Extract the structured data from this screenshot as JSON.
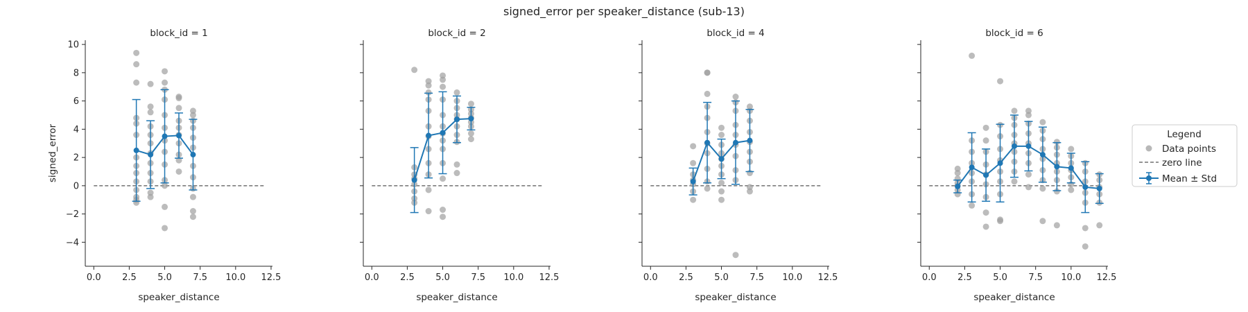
{
  "figure": {
    "title": "signed_error per speaker_distance (sub-13)"
  },
  "colors": {
    "points": "#a0a0a0",
    "mean": "#1f77b4",
    "zero_line": "#707070",
    "axis": "#262626"
  },
  "legend": {
    "title": "Legend",
    "placement": "right",
    "entries": [
      {
        "key": "points",
        "label": "Data points"
      },
      {
        "key": "zero",
        "label": "zero line"
      },
      {
        "key": "mean",
        "label": "Mean ± Std"
      }
    ]
  },
  "chart_data": [
    {
      "type": "scatter",
      "title": "block_id = 1",
      "xlabel": "speaker_distance",
      "ylabel": "signed_error",
      "xlim": [
        -0.6,
        12.6
      ],
      "ylim": [
        -5.7,
        10.3
      ],
      "xticks": [
        0.0,
        2.5,
        5.0,
        7.5,
        10.0,
        12.5
      ],
      "xtick_labels": [
        "0.0",
        "2.5",
        "5.0",
        "7.5",
        "10.0",
        "12.5"
      ],
      "yticks": [
        -4,
        -2,
        0,
        2,
        4,
        6,
        8,
        10
      ],
      "ytick_labels": [
        "−4",
        "−2",
        "0",
        "2",
        "4",
        "6",
        "8",
        "10"
      ],
      "zero_line": {
        "y": 0,
        "x_range": [
          0,
          12
        ]
      },
      "mean_std": [
        {
          "x": 3,
          "mean": 2.5,
          "std": 3.6
        },
        {
          "x": 4,
          "mean": 2.2,
          "std": 2.4
        },
        {
          "x": 5,
          "mean": 3.5,
          "std": 3.3
        },
        {
          "x": 6,
          "mean": 3.55,
          "std": 1.6
        },
        {
          "x": 7,
          "mean": 2.2,
          "std": 2.5
        }
      ],
      "points": [
        [
          3,
          9.4
        ],
        [
          3,
          8.6
        ],
        [
          3,
          7.3
        ],
        [
          3,
          4.8
        ],
        [
          3,
          4.4
        ],
        [
          3,
          3.6
        ],
        [
          3,
          2.0
        ],
        [
          3,
          1.4
        ],
        [
          3,
          0.9
        ],
        [
          3,
          0.3
        ],
        [
          3,
          -0.3
        ],
        [
          3,
          -0.8
        ],
        [
          3,
          -1.0
        ],
        [
          3,
          -1.2
        ],
        [
          4,
          7.2
        ],
        [
          4,
          5.6
        ],
        [
          4,
          5.2
        ],
        [
          4,
          4.2
        ],
        [
          4,
          3.6
        ],
        [
          4,
          3.0
        ],
        [
          4,
          2.3
        ],
        [
          4,
          1.6
        ],
        [
          4,
          0.9
        ],
        [
          4,
          0.3
        ],
        [
          4,
          -0.5
        ],
        [
          4,
          -0.8
        ],
        [
          5,
          8.1
        ],
        [
          5,
          7.3
        ],
        [
          5,
          6.8
        ],
        [
          5,
          6.1
        ],
        [
          5,
          5.0
        ],
        [
          5,
          4.1
        ],
        [
          5,
          3.2
        ],
        [
          5,
          2.4
        ],
        [
          5,
          1.5
        ],
        [
          5,
          0.4
        ],
        [
          5,
          0.0
        ],
        [
          5,
          -1.5
        ],
        [
          5,
          -3.0
        ],
        [
          6,
          6.3
        ],
        [
          6,
          6.2
        ],
        [
          6,
          5.5
        ],
        [
          6,
          4.6
        ],
        [
          6,
          4.1
        ],
        [
          6,
          3.6
        ],
        [
          6,
          3.0
        ],
        [
          6,
          2.2
        ],
        [
          6,
          1.8
        ],
        [
          6,
          1.0
        ],
        [
          7,
          5.3
        ],
        [
          7,
          5.0
        ],
        [
          7,
          4.6
        ],
        [
          7,
          4.1
        ],
        [
          7,
          3.4
        ],
        [
          7,
          2.7
        ],
        [
          7,
          1.4
        ],
        [
          7,
          0.6
        ],
        [
          7,
          -0.2
        ],
        [
          7,
          -0.8
        ],
        [
          7,
          -1.8
        ],
        [
          7,
          -2.2
        ]
      ]
    },
    {
      "type": "scatter",
      "title": "block_id = 2",
      "xlabel": "speaker_distance",
      "ylabel": "",
      "xlim": [
        -0.6,
        12.6
      ],
      "ylim": [
        -5.7,
        10.3
      ],
      "xticks": [
        0.0,
        2.5,
        5.0,
        7.5,
        10.0,
        12.5
      ],
      "xtick_labels": [
        "0.0",
        "2.5",
        "5.0",
        "7.5",
        "10.0",
        "12.5"
      ],
      "yticks": [
        -4,
        -2,
        0,
        2,
        4,
        6,
        8,
        10
      ],
      "ytick_labels": [
        "",
        "",
        "",
        "",
        "",
        "",
        "",
        ""
      ],
      "zero_line": {
        "y": 0,
        "x_range": [
          0,
          12
        ]
      },
      "mean_std": [
        {
          "x": 3,
          "mean": 0.4,
          "std": 2.3
        },
        {
          "x": 4,
          "mean": 3.55,
          "std": 3.0
        },
        {
          "x": 5,
          "mean": 3.75,
          "std": 2.9
        },
        {
          "x": 6,
          "mean": 4.7,
          "std": 1.65
        },
        {
          "x": 7,
          "mean": 4.75,
          "std": 0.8
        }
      ],
      "points": [
        [
          3,
          8.2
        ],
        [
          3,
          1.3
        ],
        [
          3,
          0.8
        ],
        [
          3,
          0.5
        ],
        [
          3,
          0.1
        ],
        [
          3,
          -0.4
        ],
        [
          3,
          -0.9
        ],
        [
          3,
          -1.2
        ],
        [
          4,
          7.4
        ],
        [
          4,
          7.1
        ],
        [
          4,
          6.6
        ],
        [
          4,
          6.1
        ],
        [
          4,
          5.3
        ],
        [
          4,
          4.2
        ],
        [
          4,
          3.5
        ],
        [
          4,
          2.6
        ],
        [
          4,
          1.6
        ],
        [
          4,
          0.8
        ],
        [
          4,
          -0.3
        ],
        [
          4,
          -1.8
        ],
        [
          5,
          7.8
        ],
        [
          5,
          7.5
        ],
        [
          5,
          7.0
        ],
        [
          5,
          6.1
        ],
        [
          5,
          5.0
        ],
        [
          5,
          4.2
        ],
        [
          5,
          3.7
        ],
        [
          5,
          3.2
        ],
        [
          5,
          2.6
        ],
        [
          5,
          1.6
        ],
        [
          5,
          0.5
        ],
        [
          5,
          -1.7
        ],
        [
          5,
          -2.2
        ],
        [
          6,
          6.6
        ],
        [
          6,
          6.0
        ],
        [
          6,
          5.5
        ],
        [
          6,
          5.0
        ],
        [
          6,
          4.7
        ],
        [
          6,
          4.2
        ],
        [
          6,
          3.6
        ],
        [
          6,
          3.1
        ],
        [
          6,
          1.5
        ],
        [
          6,
          0.9
        ],
        [
          7,
          5.8
        ],
        [
          7,
          5.4
        ],
        [
          7,
          5.1
        ],
        [
          7,
          4.8
        ],
        [
          7,
          4.5
        ],
        [
          7,
          4.2
        ],
        [
          7,
          3.7
        ],
        [
          7,
          3.3
        ]
      ]
    },
    {
      "type": "scatter",
      "title": "block_id = 4",
      "xlabel": "speaker_distance",
      "ylabel": "",
      "xlim": [
        -0.6,
        12.6
      ],
      "ylim": [
        -5.7,
        10.3
      ],
      "xticks": [
        0.0,
        2.5,
        5.0,
        7.5,
        10.0,
        12.5
      ],
      "xtick_labels": [
        "0.0",
        "2.5",
        "5.0",
        "7.5",
        "10.0",
        "12.5"
      ],
      "yticks": [
        -4,
        -2,
        0,
        2,
        4,
        6,
        8,
        10
      ],
      "ytick_labels": [
        "",
        "",
        "",
        "",
        "",
        "",
        "",
        ""
      ],
      "zero_line": {
        "y": 0,
        "x_range": [
          0,
          12
        ]
      },
      "mean_std": [
        {
          "x": 3,
          "mean": 0.3,
          "std": 0.95
        },
        {
          "x": 4,
          "mean": 3.05,
          "std": 2.85
        },
        {
          "x": 5,
          "mean": 1.9,
          "std": 1.4
        },
        {
          "x": 6,
          "mean": 3.05,
          "std": 2.95
        },
        {
          "x": 7,
          "mean": 3.2,
          "std": 2.2
        }
      ],
      "points": [
        [
          3,
          2.8
        ],
        [
          3,
          1.6
        ],
        [
          3,
          0.8
        ],
        [
          3,
          0.4
        ],
        [
          3,
          0.1
        ],
        [
          3,
          -0.4
        ],
        [
          3,
          -1.0
        ],
        [
          4,
          8.0
        ],
        [
          4,
          8.0
        ],
        [
          4,
          6.5
        ],
        [
          4,
          5.6
        ],
        [
          4,
          4.8
        ],
        [
          4,
          3.8
        ],
        [
          4,
          3.0
        ],
        [
          4,
          2.3
        ],
        [
          4,
          1.2
        ],
        [
          4,
          0.3
        ],
        [
          4,
          -0.2
        ],
        [
          5,
          4.1
        ],
        [
          5,
          3.6
        ],
        [
          5,
          2.9
        ],
        [
          5,
          2.3
        ],
        [
          5,
          1.9
        ],
        [
          5,
          1.4
        ],
        [
          5,
          0.8
        ],
        [
          5,
          0.2
        ],
        [
          5,
          -0.4
        ],
        [
          5,
          -1.0
        ],
        [
          6,
          6.3
        ],
        [
          6,
          5.9
        ],
        [
          6,
          5.3
        ],
        [
          6,
          4.3
        ],
        [
          6,
          3.6
        ],
        [
          6,
          2.9
        ],
        [
          6,
          2.1
        ],
        [
          6,
          1.1
        ],
        [
          6,
          0.4
        ],
        [
          6,
          -4.9
        ],
        [
          7,
          5.6
        ],
        [
          7,
          5.3
        ],
        [
          7,
          4.6
        ],
        [
          7,
          3.8
        ],
        [
          7,
          3.1
        ],
        [
          7,
          2.4
        ],
        [
          7,
          1.7
        ],
        [
          7,
          0.9
        ],
        [
          7,
          -0.1
        ],
        [
          7,
          -0.4
        ]
      ]
    },
    {
      "type": "scatter",
      "title": "block_id = 6",
      "xlabel": "speaker_distance",
      "ylabel": "",
      "xlim": [
        -0.6,
        12.6
      ],
      "ylim": [
        -5.7,
        10.3
      ],
      "xticks": [
        0.0,
        2.5,
        5.0,
        7.5,
        10.0,
        12.5
      ],
      "xtick_labels": [
        "0.0",
        "2.5",
        "5.0",
        "7.5",
        "10.0",
        "12.5"
      ],
      "yticks": [
        -4,
        -2,
        0,
        2,
        4,
        6,
        8,
        10
      ],
      "ytick_labels": [
        "",
        "",
        "",
        "",
        "",
        "",
        "",
        ""
      ],
      "zero_line": {
        "y": 0,
        "x_range": [
          0,
          12
        ]
      },
      "mean_std": [
        {
          "x": 2,
          "mean": -0.05,
          "std": 0.45
        },
        {
          "x": 3,
          "mean": 1.3,
          "std": 2.45
        },
        {
          "x": 4,
          "mean": 0.75,
          "std": 1.85
        },
        {
          "x": 5,
          "mean": 1.6,
          "std": 2.75
        },
        {
          "x": 6,
          "mean": 2.8,
          "std": 2.2
        },
        {
          "x": 7,
          "mean": 2.8,
          "std": 1.75
        },
        {
          "x": 8,
          "mean": 2.2,
          "std": 1.95
        },
        {
          "x": 9,
          "mean": 1.35,
          "std": 1.7
        },
        {
          "x": 10,
          "mean": 1.25,
          "std": 1.05
        },
        {
          "x": 11,
          "mean": -0.1,
          "std": 1.8
        },
        {
          "x": 12,
          "mean": -0.2,
          "std": 1.05
        }
      ],
      "points": [
        [
          2,
          1.2
        ],
        [
          2,
          0.9
        ],
        [
          2,
          0.5
        ],
        [
          2,
          0.2
        ],
        [
          2,
          0.0
        ],
        [
          2,
          -0.3
        ],
        [
          2,
          -0.6
        ],
        [
          3,
          9.2
        ],
        [
          3,
          3.2
        ],
        [
          3,
          2.4
        ],
        [
          3,
          1.6
        ],
        [
          3,
          0.9
        ],
        [
          3,
          0.3
        ],
        [
          3,
          -0.6
        ],
        [
          3,
          -1.4
        ],
        [
          4,
          4.1
        ],
        [
          4,
          3.2
        ],
        [
          4,
          2.4
        ],
        [
          4,
          1.5
        ],
        [
          4,
          0.8
        ],
        [
          4,
          0.1
        ],
        [
          4,
          -0.8
        ],
        [
          4,
          -1.9
        ],
        [
          4,
          -2.9
        ],
        [
          5,
          7.4
        ],
        [
          5,
          4.3
        ],
        [
          5,
          3.5
        ],
        [
          5,
          2.6
        ],
        [
          5,
          1.8
        ],
        [
          5,
          1.0
        ],
        [
          5,
          0.3
        ],
        [
          5,
          -0.6
        ],
        [
          5,
          -2.4
        ],
        [
          5,
          -2.5
        ],
        [
          6,
          5.3
        ],
        [
          6,
          4.8
        ],
        [
          6,
          4.3
        ],
        [
          6,
          3.6
        ],
        [
          6,
          3.0
        ],
        [
          6,
          2.4
        ],
        [
          6,
          1.7
        ],
        [
          6,
          1.0
        ],
        [
          6,
          0.3
        ],
        [
          7,
          5.3
        ],
        [
          7,
          5.0
        ],
        [
          7,
          4.4
        ],
        [
          7,
          3.7
        ],
        [
          7,
          3.0
        ],
        [
          7,
          2.3
        ],
        [
          7,
          1.6
        ],
        [
          7,
          0.8
        ],
        [
          7,
          -0.1
        ],
        [
          8,
          4.5
        ],
        [
          8,
          3.9
        ],
        [
          8,
          3.3
        ],
        [
          8,
          2.6
        ],
        [
          8,
          1.9
        ],
        [
          8,
          1.1
        ],
        [
          8,
          0.4
        ],
        [
          8,
          -0.2
        ],
        [
          8,
          -2.5
        ],
        [
          9,
          3.1
        ],
        [
          9,
          2.7
        ],
        [
          9,
          2.2
        ],
        [
          9,
          1.6
        ],
        [
          9,
          1.0
        ],
        [
          9,
          0.4
        ],
        [
          9,
          -0.4
        ],
        [
          9,
          -2.8
        ],
        [
          10,
          2.6
        ],
        [
          10,
          2.1
        ],
        [
          10,
          1.6
        ],
        [
          10,
          1.1
        ],
        [
          10,
          0.6
        ],
        [
          10,
          0.1
        ],
        [
          10,
          -0.3
        ],
        [
          11,
          1.6
        ],
        [
          11,
          1.0
        ],
        [
          11,
          0.3
        ],
        [
          11,
          -0.5
        ],
        [
          11,
          -1.2
        ],
        [
          11,
          -3.0
        ],
        [
          11,
          -4.3
        ],
        [
          12,
          0.8
        ],
        [
          12,
          0.4
        ],
        [
          12,
          -0.1
        ],
        [
          12,
          -0.6
        ],
        [
          12,
          -1.2
        ],
        [
          12,
          -2.8
        ]
      ]
    }
  ]
}
